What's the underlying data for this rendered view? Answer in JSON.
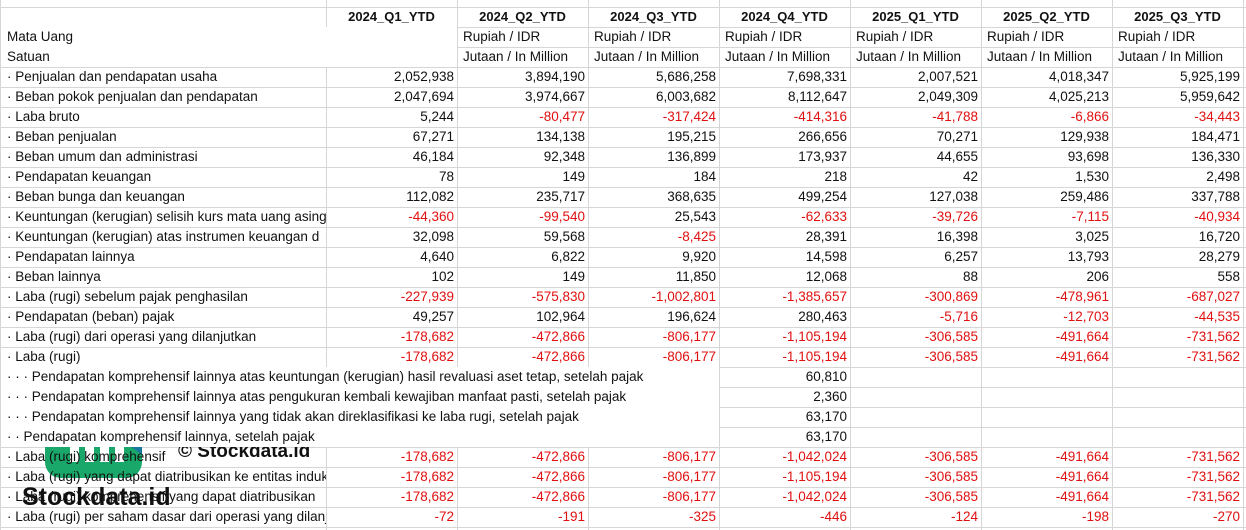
{
  "columns": [
    "2024_Q1_YTD",
    "2024_Q2_YTD",
    "2024_Q3_YTD",
    "2024_Q4_YTD",
    "2025_Q1_YTD",
    "2025_Q2_YTD",
    "2025_Q3_YTD"
  ],
  "header_rows": [
    {
      "label": "Mata Uang",
      "cells": [
        null,
        "Rupiah / IDR",
        "Rupiah / IDR",
        "Rupiah / IDR",
        "Rupiah / IDR",
        "Rupiah / IDR",
        "Rupiah / IDR"
      ]
    },
    {
      "label": "Satuan",
      "cells": [
        null,
        "Jutaan / In Million",
        "Jutaan / In Million",
        "Jutaan / In Million",
        "Jutaan / In Million",
        "Jutaan / In Million",
        "Jutaan / In Million"
      ]
    }
  ],
  "rows": [
    {
      "label": "· Penjualan dan pendapatan usaha",
      "cells": [
        "2,052,938",
        "3,894,190",
        "5,686,258",
        "7,698,331",
        "2,007,521",
        "4,018,347",
        "5,925,199"
      ]
    },
    {
      "label": "· Beban pokok penjualan dan pendapatan",
      "cells": [
        "2,047,694",
        "3,974,667",
        "6,003,682",
        "8,112,647",
        "2,049,309",
        "4,025,213",
        "5,959,642"
      ]
    },
    {
      "label": "· Laba bruto",
      "cells": [
        "5,244",
        "-80,477",
        "-317,424",
        "-414,316",
        "-41,788",
        "-6,866",
        "-34,443"
      ]
    },
    {
      "label": "· Beban penjualan",
      "cells": [
        "67,271",
        "134,138",
        "195,215",
        "266,656",
        "70,271",
        "129,938",
        "184,471"
      ]
    },
    {
      "label": "· Beban umum dan administrasi",
      "cells": [
        "46,184",
        "92,348",
        "136,899",
        "173,937",
        "44,655",
        "93,698",
        "136,330"
      ]
    },
    {
      "label": "· Pendapatan keuangan",
      "cells": [
        "78",
        "149",
        "184",
        "218",
        "42",
        "1,530",
        "2,498"
      ]
    },
    {
      "label": "· Beban bunga dan keuangan",
      "cells": [
        "112,082",
        "235,717",
        "368,635",
        "499,254",
        "127,038",
        "259,486",
        "337,788"
      ]
    },
    {
      "label": "· Keuntungan (kerugian) selisih kurs mata uang asing",
      "cells": [
        "-44,360",
        "-99,540",
        "25,543",
        "-62,633",
        "-39,726",
        "-7,115",
        "-40,934"
      ]
    },
    {
      "label": "· Keuntungan (kerugian) atas instrumen keuangan d",
      "cells": [
        "32,098",
        "59,568",
        "-8,425",
        "28,391",
        "16,398",
        "3,025",
        "16,720"
      ]
    },
    {
      "label": "· Pendapatan lainnya",
      "cells": [
        "4,640",
        "6,822",
        "9,920",
        "14,598",
        "6,257",
        "13,793",
        "28,279"
      ]
    },
    {
      "label": "· Beban lainnya",
      "cells": [
        "102",
        "149",
        "11,850",
        "12,068",
        "88",
        "206",
        "558"
      ]
    },
    {
      "label": "· Laba (rugi) sebelum pajak penghasilan",
      "cells": [
        "-227,939",
        "-575,830",
        "-1,002,801",
        "-1,385,657",
        "-300,869",
        "-478,961",
        "-687,027"
      ]
    },
    {
      "label": "· Pendapatan (beban) pajak",
      "cells": [
        "49,257",
        "102,964",
        "196,624",
        "280,463",
        "-5,716",
        "-12,703",
        "-44,535"
      ]
    },
    {
      "label": "· Laba (rugi) dari operasi yang dilanjutkan",
      "cells": [
        "-178,682",
        "-472,866",
        "-806,177",
        "-1,105,194",
        "-306,585",
        "-491,664",
        "-731,562"
      ]
    },
    {
      "label": "· Laba (rugi)",
      "cells": [
        "-178,682",
        "-472,866",
        "-806,177",
        "-1,105,194",
        "-306,585",
        "-491,664",
        "-731,562"
      ]
    },
    {
      "label": "· · · Pendapatan komprehensif lainnya atas keuntungan (kerugian) hasil revaluasi aset tetap, setelah pajak",
      "cells": [
        null,
        null,
        null,
        "60,810",
        null,
        null,
        null
      ]
    },
    {
      "label": "· · · Pendapatan komprehensif lainnya atas pengukuran kembali kewajiban manfaat pasti, setelah pajak",
      "cells": [
        null,
        null,
        null,
        "2,360",
        null,
        null,
        null
      ]
    },
    {
      "label": "· · · Pendapatan komprehensif lainnya yang tidak akan direklasifikasi ke laba rugi, setelah pajak",
      "cells": [
        null,
        null,
        null,
        "63,170",
        null,
        null,
        null
      ]
    },
    {
      "label": "· · Pendapatan komprehensif lainnya, setelah pajak",
      "cells": [
        null,
        null,
        null,
        "63,170",
        null,
        null,
        null
      ]
    },
    {
      "label": "· Laba (rugi) komprehensif",
      "cells": [
        "-178,682",
        "-472,866",
        "-806,177",
        "-1,042,024",
        "-306,585",
        "-491,664",
        "-731,562"
      ]
    },
    {
      "label": "· Laba (rugi) yang dapat diatribusikan ke entitas induk",
      "cells": [
        "-178,682",
        "-472,866",
        "-806,177",
        "-1,105,194",
        "-306,585",
        "-491,664",
        "-731,562"
      ]
    },
    {
      "label": "· Laba (rugi) komprehensif yang dapat diatribusikan",
      "cells": [
        "-178,682",
        "-472,866",
        "-806,177",
        "-1,042,024",
        "-306,585",
        "-491,664",
        "-731,562"
      ]
    },
    {
      "label": "· Laba (rugi) per saham dasar dari operasi yang dilanjutkan",
      "cells": [
        "-72",
        "-191",
        "-325",
        "-446",
        "-124",
        "-198",
        "-270"
      ]
    }
  ],
  "watermark": {
    "caption": "© Stockdata.id",
    "brand": "Stockdata.id"
  }
}
